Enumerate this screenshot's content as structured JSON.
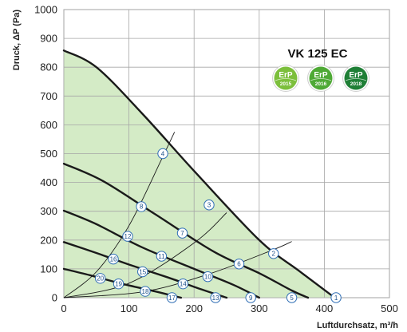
{
  "chart_data": {
    "type": "line",
    "title": "VK 125 EC",
    "xlabel": "Luftdurchsatz, m³/h",
    "ylabel": "Druck, ΔP (Pa)",
    "xlim": [
      0,
      500
    ],
    "ylim": [
      0,
      1000
    ],
    "xticks": [
      "0",
      "100",
      "200",
      "300",
      "400",
      "500"
    ],
    "yticks": [
      "0",
      "100",
      "200",
      "300",
      "400",
      "500",
      "600",
      "700",
      "800",
      "900",
      "1000"
    ],
    "grid": true,
    "fill_color": "#d4ebc6",
    "line_color": "#1a1a1a",
    "badges": [
      {
        "text": "ErP",
        "year": "2015",
        "color": "#7cbf3c"
      },
      {
        "text": "ErP",
        "year": "2016",
        "color": "#4ea935"
      },
      {
        "text": "ErP",
        "year": "2018",
        "color": "#1f7f36"
      }
    ],
    "curves": [
      {
        "points": [
          [
            0,
            858
          ],
          [
            50,
            800
          ],
          [
            120,
            640
          ],
          [
            200,
            440
          ],
          [
            300,
            200
          ],
          [
            360,
            95
          ],
          [
            410,
            10
          ]
        ]
      },
      {
        "points": [
          [
            0,
            465
          ],
          [
            60,
            405
          ],
          [
            140,
            290
          ],
          [
            230,
            160
          ],
          [
            300,
            85
          ],
          [
            350,
            25
          ],
          [
            375,
            0
          ]
        ]
      },
      {
        "points": [
          [
            0,
            302
          ],
          [
            50,
            255
          ],
          [
            120,
            175
          ],
          [
            200,
            100
          ],
          [
            260,
            45
          ],
          [
            300,
            0
          ]
        ]
      },
      {
        "points": [
          [
            0,
            193
          ],
          [
            50,
            155
          ],
          [
            100,
            115
          ],
          [
            160,
            70
          ],
          [
            210,
            30
          ],
          [
            250,
            0
          ]
        ]
      },
      {
        "points": [
          [
            0,
            100
          ],
          [
            40,
            78
          ],
          [
            90,
            48
          ],
          [
            140,
            22
          ],
          [
            170,
            5
          ],
          [
            180,
            0
          ]
        ]
      }
    ],
    "system_lines": [
      {
        "points": [
          [
            0,
            0
          ],
          [
            50,
            90
          ],
          [
            100,
            250
          ],
          [
            150,
            480
          ],
          [
            170,
            575
          ]
        ]
      },
      {
        "points": [
          [
            0,
            0
          ],
          [
            100,
            50
          ],
          [
            200,
            190
          ],
          [
            250,
            295
          ]
        ]
      },
      {
        "points": [
          [
            0,
            0
          ],
          [
            120,
            20
          ],
          [
            220,
            80
          ],
          [
            320,
            165
          ],
          [
            350,
            195
          ]
        ]
      }
    ],
    "markers": [
      {
        "label": "1",
        "x": 418,
        "y": 0
      },
      {
        "label": "2",
        "x": 322,
        "y": 153
      },
      {
        "label": "3",
        "x": 223,
        "y": 322
      },
      {
        "label": "4",
        "x": 152,
        "y": 500
      },
      {
        "label": "5",
        "x": 350,
        "y": 0
      },
      {
        "label": "6",
        "x": 269,
        "y": 117
      },
      {
        "label": "7",
        "x": 182,
        "y": 224
      },
      {
        "label": "8",
        "x": 119,
        "y": 316
      },
      {
        "label": "9",
        "x": 287,
        "y": 0
      },
      {
        "label": "10",
        "x": 221,
        "y": 73
      },
      {
        "label": "11",
        "x": 150,
        "y": 144
      },
      {
        "label": "12",
        "x": 98,
        "y": 213
      },
      {
        "label": "13",
        "x": 233,
        "y": 0
      },
      {
        "label": "14",
        "x": 183,
        "y": 48
      },
      {
        "label": "15",
        "x": 121,
        "y": 90
      },
      {
        "label": "16",
        "x": 76,
        "y": 134
      },
      {
        "label": "17",
        "x": 166,
        "y": 0
      },
      {
        "label": "18",
        "x": 125,
        "y": 22
      },
      {
        "label": "19",
        "x": 84,
        "y": 48
      },
      {
        "label": "20",
        "x": 56,
        "y": 67
      }
    ]
  }
}
